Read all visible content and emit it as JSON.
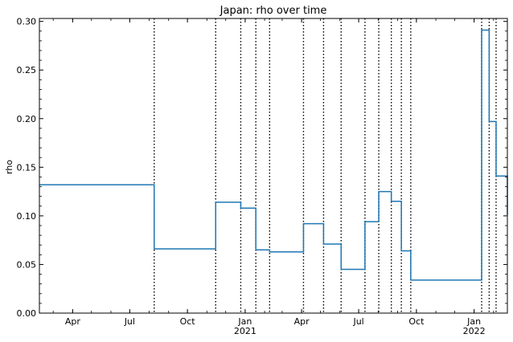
{
  "chart_data": {
    "type": "line",
    "drawstyle": "steps-post",
    "title": "Japan: rho over time",
    "xlabel": "",
    "ylabel": "rho",
    "xlim": [
      "2020-02-08",
      "2022-02-23"
    ],
    "ylim": [
      0,
      0.303
    ],
    "yticks": [
      0.0,
      0.05,
      0.1,
      0.15,
      0.2,
      0.25,
      0.3
    ],
    "ytick_labels": [
      "0.00",
      "0.05",
      "0.10",
      "0.15",
      "0.20",
      "0.25",
      "0.30"
    ],
    "xticks": [
      {
        "date": "2020-04-01",
        "label": "Apr",
        "sub": ""
      },
      {
        "date": "2020-07-01",
        "label": "Jul",
        "sub": ""
      },
      {
        "date": "2020-10-01",
        "label": "Oct",
        "sub": ""
      },
      {
        "date": "2021-01-01",
        "label": "Jan",
        "sub": "2021"
      },
      {
        "date": "2021-04-01",
        "label": "Apr",
        "sub": ""
      },
      {
        "date": "2021-07-01",
        "label": "Jul",
        "sub": ""
      },
      {
        "date": "2021-10-01",
        "label": "Oct",
        "sub": ""
      },
      {
        "date": "2022-01-01",
        "label": "Jan",
        "sub": "2022"
      }
    ],
    "grid": false,
    "colors": {
      "line": "#1f77b4",
      "changepoints": "#000000"
    },
    "series": [
      {
        "x": [
          "2020-02-08",
          "2020-08-09",
          "2020-11-15",
          "2020-12-25",
          "2021-01-18",
          "2021-02-09",
          "2021-04-04",
          "2021-05-06",
          "2021-06-03",
          "2021-07-11",
          "2021-08-02",
          "2021-08-22",
          "2021-09-07",
          "2021-09-22",
          "2022-01-13",
          "2022-01-25",
          "2022-02-05",
          "2022-02-23"
        ],
        "values": [
          0.132,
          0.066,
          0.114,
          0.108,
          0.065,
          0.063,
          0.092,
          0.071,
          0.045,
          0.094,
          0.125,
          0.115,
          0.064,
          0.034,
          0.291,
          0.197,
          0.141,
          0.101
        ]
      }
    ],
    "changepoints": [
      "2020-08-09",
      "2020-11-15",
      "2020-12-25",
      "2021-01-18",
      "2021-02-09",
      "2021-04-04",
      "2021-05-06",
      "2021-06-03",
      "2021-07-11",
      "2021-08-02",
      "2021-08-22",
      "2021-09-07",
      "2021-09-22",
      "2022-01-13",
      "2022-01-25",
      "2022-02-05"
    ]
  }
}
